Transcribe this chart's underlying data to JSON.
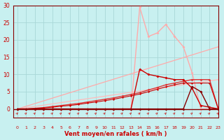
{
  "bg_color": "#c8f0f0",
  "grid_color": "#a8d8d8",
  "xlabel": "Vent moyen/en rafales ( km/h )",
  "xlim_min": -0.5,
  "xlim_max": 23,
  "ylim_min": -2.5,
  "ylim_max": 30,
  "yticks": [
    0,
    5,
    10,
    15,
    20,
    25,
    30
  ],
  "xticks": [
    0,
    1,
    2,
    3,
    4,
    5,
    6,
    7,
    8,
    9,
    10,
    11,
    12,
    13,
    14,
    15,
    16,
    17,
    18,
    19,
    20,
    21,
    22,
    23
  ],
  "curves": [
    {
      "name": "light_pink_spiky",
      "x": [
        0,
        1,
        2,
        3,
        4,
        5,
        6,
        7,
        8,
        9,
        10,
        11,
        12,
        13,
        14,
        15,
        16,
        17,
        18,
        19,
        20,
        21,
        22,
        23
      ],
      "y": [
        0,
        0,
        0,
        0,
        0,
        0,
        0,
        0,
        0,
        0,
        0,
        0,
        0,
        0,
        29.5,
        21.0,
        22.0,
        24.5,
        21.0,
        18.0,
        10.5,
        0,
        0,
        0
      ],
      "color": "#ffaaaa",
      "lw": 1.0,
      "marker": "D",
      "ms": 2.0,
      "zorder": 3
    },
    {
      "name": "pink_diagonal_high",
      "x": [
        0,
        23
      ],
      "y": [
        0,
        18.0
      ],
      "color": "#ffaaaa",
      "lw": 0.9,
      "marker": "D",
      "ms": 1.5,
      "zorder": 2
    },
    {
      "name": "pink_diagonal_low",
      "x": [
        0,
        23
      ],
      "y": [
        0,
        8.5
      ],
      "color": "#ffbbbb",
      "lw": 0.9,
      "marker": "D",
      "ms": 1.5,
      "zorder": 2
    },
    {
      "name": "dark_red_spiky",
      "x": [
        0,
        1,
        2,
        3,
        4,
        5,
        6,
        7,
        8,
        9,
        10,
        11,
        12,
        13,
        14,
        15,
        16,
        17,
        18,
        19,
        20,
        21,
        22,
        23
      ],
      "y": [
        0,
        0,
        0,
        0,
        0,
        0,
        0,
        0,
        0,
        0,
        0,
        0,
        0,
        0,
        11.5,
        10.0,
        9.5,
        9.0,
        8.5,
        8.5,
        6.0,
        1.0,
        0.5,
        0
      ],
      "color": "#cc0000",
      "lw": 1.0,
      "marker": "D",
      "ms": 2.0,
      "zorder": 5
    },
    {
      "name": "medium_red_diagonal",
      "x": [
        0,
        1,
        2,
        3,
        4,
        5,
        6,
        7,
        8,
        9,
        10,
        11,
        12,
        13,
        14,
        15,
        16,
        17,
        18,
        19,
        20,
        21,
        22,
        23
      ],
      "y": [
        0,
        0,
        0.2,
        0.4,
        0.7,
        1.0,
        1.3,
        1.6,
        2.0,
        2.4,
        2.8,
        3.2,
        3.7,
        4.2,
        4.7,
        5.5,
        6.2,
        7.0,
        7.5,
        8.0,
        8.5,
        8.5,
        8.5,
        0
      ],
      "color": "#dd3333",
      "lw": 1.0,
      "marker": "D",
      "ms": 1.8,
      "zorder": 4
    },
    {
      "name": "medium_red_diagonal2",
      "x": [
        0,
        1,
        2,
        3,
        4,
        5,
        6,
        7,
        8,
        9,
        10,
        11,
        12,
        13,
        14,
        15,
        16,
        17,
        18,
        19,
        20,
        21,
        22,
        23
      ],
      "y": [
        0,
        0,
        0.1,
        0.3,
        0.5,
        0.8,
        1.0,
        1.3,
        1.7,
        2.0,
        2.4,
        2.8,
        3.3,
        3.8,
        4.3,
        5.0,
        5.7,
        6.4,
        7.0,
        7.5,
        7.5,
        7.5,
        7.5,
        0
      ],
      "color": "#cc0000",
      "lw": 0.8,
      "marker": "D",
      "ms": 1.5,
      "zorder": 4
    },
    {
      "name": "dark_red_small_bump",
      "x": [
        0,
        1,
        2,
        3,
        4,
        5,
        6,
        7,
        8,
        9,
        10,
        11,
        12,
        13,
        14,
        15,
        16,
        17,
        18,
        19,
        20,
        21,
        22,
        23
      ],
      "y": [
        0,
        0,
        0,
        0,
        0,
        0,
        0,
        0,
        0,
        0,
        0,
        0,
        0,
        0,
        0,
        0,
        0,
        0,
        0,
        0,
        6.5,
        5.0,
        0,
        0
      ],
      "color": "#880000",
      "lw": 1.0,
      "marker": "D",
      "ms": 2.0,
      "zorder": 6
    }
  ],
  "arrow_color": "#cc0000",
  "tick_color": "#cc0000",
  "spine_color": "#880000",
  "xlabel_fontsize": 6,
  "tick_fontsize_x": 4.5,
  "tick_fontsize_y": 5.5,
  "xlabel_fontweight": "bold"
}
